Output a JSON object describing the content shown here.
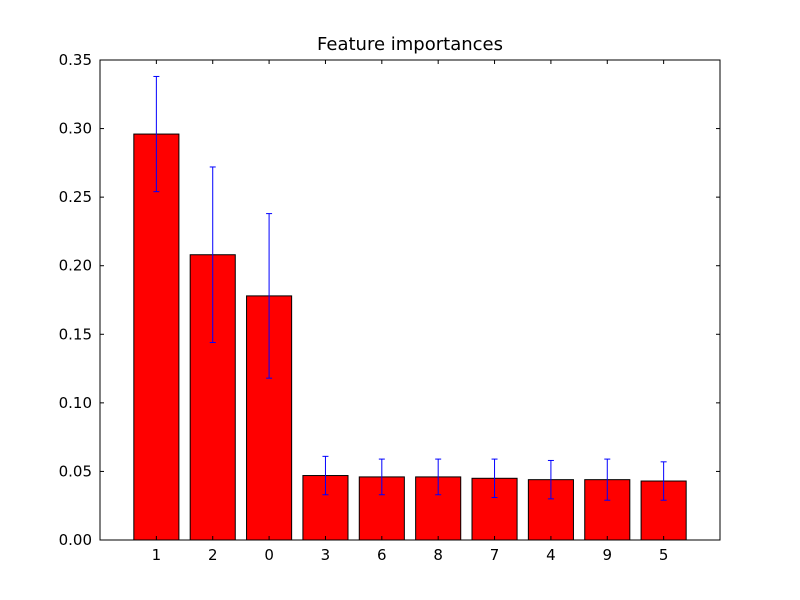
{
  "chart_data": {
    "type": "bar",
    "title": "Feature importances",
    "xlabel": "",
    "ylabel": "",
    "categories": [
      "1",
      "2",
      "0",
      "3",
      "6",
      "8",
      "7",
      "4",
      "9",
      "5"
    ],
    "values": [
      0.296,
      0.208,
      0.178,
      0.047,
      0.046,
      0.046,
      0.045,
      0.044,
      0.044,
      0.043
    ],
    "error": [
      0.042,
      0.064,
      0.06,
      0.014,
      0.013,
      0.013,
      0.014,
      0.014,
      0.015,
      0.014
    ],
    "ylim": [
      0,
      0.35
    ],
    "yticks": [
      "0.00",
      "0.05",
      "0.10",
      "0.15",
      "0.20",
      "0.25",
      "0.30",
      "0.35"
    ],
    "grid": false,
    "colors": {
      "bar": "#ff0000",
      "bar_edge": "#000000",
      "error": "#0000ff"
    }
  }
}
